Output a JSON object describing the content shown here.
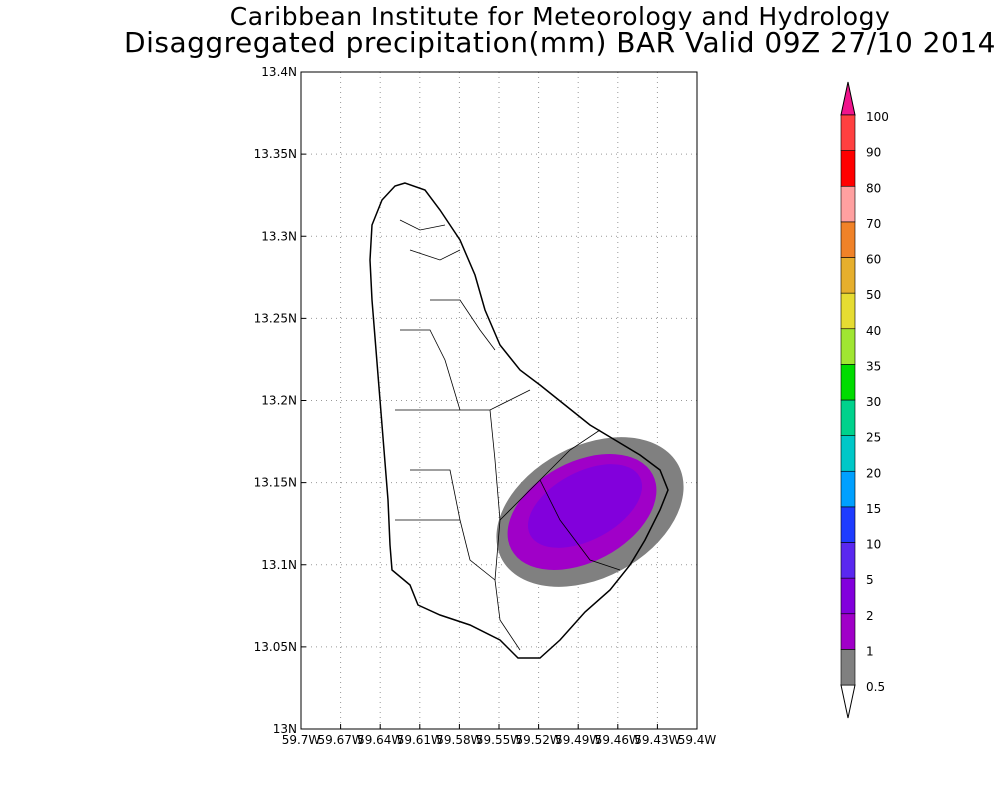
{
  "header": {
    "title_line1": "Caribbean Institute for Meteorology and Hydrology",
    "title_line2": "Disaggregated precipitation(mm) BAR Valid 09Z 27/10 2014"
  },
  "chart_data": {
    "type": "heatmap",
    "title": "Disaggregated precipitation(mm) BAR Valid 09Z 27/10 2014",
    "xlabel": "",
    "ylabel": "",
    "xlim": [
      -59.7,
      -59.4
    ],
    "ylim": [
      13.0,
      13.4
    ],
    "grid": true,
    "x_ticks": [
      -59.7,
      -59.67,
      -59.64,
      -59.61,
      -59.58,
      -59.55,
      -59.52,
      -59.49,
      -59.46,
      -59.43,
      -59.4
    ],
    "x_tick_labels": [
      "59.7W",
      "59.67W",
      "59.64W",
      "59.61W",
      "59.58W",
      "59.55W",
      "59.52W",
      "59.49W",
      "59.46W",
      "59.43W",
      "59.4W"
    ],
    "y_ticks": [
      13.0,
      13.05,
      13.1,
      13.15,
      13.2,
      13.25,
      13.3,
      13.35,
      13.4
    ],
    "y_tick_labels": [
      "13N",
      "13.05N",
      "13.1N",
      "13.15N",
      "13.2N",
      "13.25N",
      "13.3N",
      "13.35N",
      "13.4N"
    ],
    "colorbar": {
      "placement": "right",
      "levels": [
        0.5,
        1,
        2,
        5,
        10,
        15,
        20,
        25,
        30,
        35,
        40,
        50,
        60,
        70,
        80,
        90,
        100
      ],
      "labels": [
        "0.5",
        "1",
        "2",
        "5",
        "10",
        "15",
        "20",
        "25",
        "30",
        "35",
        "40",
        "50",
        "60",
        "70",
        "80",
        "90",
        "100"
      ],
      "colors": [
        "#808080",
        "#a000c8",
        "#8200dc",
        "#5a28f0",
        "#1e3cff",
        "#00a0ff",
        "#00c8c8",
        "#00d28c",
        "#00dc00",
        "#a0e632",
        "#e6dc32",
        "#e6af2d",
        "#f08228",
        "#ffa0a0",
        "#ff0000",
        "#ff4040"
      ],
      "below_color": "#ffffff",
      "above_color": "#f0148c"
    },
    "regions": [
      {
        "level_range": [
          0.5,
          1
        ],
        "color": "#808080",
        "center": [
          -59.49,
          13.14
        ]
      },
      {
        "level_range": [
          1,
          2
        ],
        "color": "#a000c8",
        "center": [
          -59.49,
          13.14
        ]
      },
      {
        "level_range": [
          2,
          5
        ],
        "color": "#8200dc",
        "center": [
          -59.5,
          13.13
        ]
      }
    ]
  }
}
